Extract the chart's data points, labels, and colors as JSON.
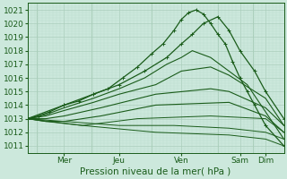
{
  "xlabel": "Pression niveau de la mer( hPa )",
  "bg_color": "#cce8dc",
  "grid_major_color": "#aacebb",
  "grid_minor_color": "#bcdece",
  "line_color": "#1a5c1a",
  "xlim": [
    0,
    7.0
  ],
  "ylim": [
    1010.5,
    1021.5
  ],
  "yticks": [
    1011,
    1012,
    1013,
    1014,
    1015,
    1016,
    1017,
    1018,
    1019,
    1020,
    1021
  ],
  "day_positions": [
    1.0,
    2.5,
    4.2,
    5.8,
    6.5
  ],
  "day_labels": [
    "Mer",
    "Jeu",
    "Ven",
    "Sam",
    "Dim"
  ],
  "day_vlines": [
    0.25,
    1.75,
    3.4,
    5.2,
    6.15
  ],
  "series": [
    {
      "x": [
        0.0,
        0.3,
        0.6,
        1.0,
        1.4,
        1.8,
        2.2,
        2.6,
        3.0,
        3.4,
        3.7,
        4.0,
        4.2,
        4.4,
        4.6,
        4.8,
        5.0,
        5.2,
        5.4,
        5.6,
        5.8,
        6.0,
        6.2,
        6.5,
        7.0
      ],
      "y": [
        1013.0,
        1013.2,
        1013.5,
        1014.0,
        1014.3,
        1014.8,
        1015.2,
        1016.0,
        1016.8,
        1017.8,
        1018.5,
        1019.5,
        1020.3,
        1020.8,
        1021.0,
        1020.7,
        1020.0,
        1019.2,
        1018.5,
        1017.2,
        1016.0,
        1015.0,
        1014.0,
        1012.5,
        1011.0
      ],
      "marker": true,
      "lw": 0.9
    },
    {
      "x": [
        0.0,
        1.0,
        1.8,
        2.5,
        3.2,
        3.8,
        4.2,
        4.5,
        4.8,
        5.2,
        5.5,
        5.8,
        6.2,
        6.5,
        7.0
      ],
      "y": [
        1013.0,
        1014.0,
        1014.8,
        1015.5,
        1016.5,
        1017.5,
        1018.5,
        1019.2,
        1020.0,
        1020.5,
        1019.5,
        1018.0,
        1016.5,
        1015.0,
        1013.0
      ],
      "marker": true,
      "lw": 0.9
    },
    {
      "x": [
        0.0,
        0.5,
        1.0,
        1.8,
        2.5,
        3.2,
        3.8,
        4.2,
        4.5,
        5.0,
        5.5,
        6.0,
        6.5,
        7.0
      ],
      "y": [
        1013.0,
        1013.3,
        1013.8,
        1014.5,
        1015.2,
        1016.0,
        1017.0,
        1017.5,
        1018.0,
        1017.5,
        1016.5,
        1015.5,
        1013.5,
        1011.5
      ],
      "marker": false,
      "lw": 0.8
    },
    {
      "x": [
        0.0,
        0.5,
        1.0,
        1.8,
        2.5,
        3.5,
        4.2,
        5.0,
        5.5,
        6.5,
        7.0
      ],
      "y": [
        1013.0,
        1013.2,
        1013.6,
        1014.2,
        1014.8,
        1015.5,
        1016.5,
        1016.8,
        1016.2,
        1014.5,
        1012.5
      ],
      "marker": false,
      "lw": 0.8
    },
    {
      "x": [
        0.0,
        0.5,
        1.0,
        2.0,
        3.5,
        5.0,
        5.5,
        6.5,
        7.0
      ],
      "y": [
        1013.0,
        1013.0,
        1013.2,
        1013.8,
        1014.8,
        1015.2,
        1015.0,
        1013.8,
        1012.5
      ],
      "marker": false,
      "lw": 0.8
    },
    {
      "x": [
        0.0,
        0.5,
        1.0,
        2.0,
        3.5,
        5.5,
        6.5,
        7.0
      ],
      "y": [
        1013.0,
        1012.8,
        1012.8,
        1013.2,
        1014.0,
        1014.2,
        1013.2,
        1012.0
      ],
      "marker": false,
      "lw": 0.8
    },
    {
      "x": [
        0.0,
        0.5,
        1.5,
        3.0,
        5.0,
        6.5,
        7.0
      ],
      "y": [
        1013.0,
        1012.8,
        1012.5,
        1013.0,
        1013.2,
        1013.0,
        1012.0
      ],
      "marker": false,
      "lw": 0.7
    },
    {
      "x": [
        0.0,
        1.0,
        2.5,
        4.0,
        5.5,
        6.5,
        7.0
      ],
      "y": [
        1013.0,
        1012.8,
        1012.5,
        1012.5,
        1012.3,
        1012.0,
        1011.5
      ],
      "marker": false,
      "lw": 0.7
    },
    {
      "x": [
        0.0,
        1.5,
        3.5,
        5.5,
        6.5,
        7.0
      ],
      "y": [
        1013.0,
        1012.5,
        1012.0,
        1011.8,
        1011.5,
        1011.0
      ],
      "marker": false,
      "lw": 0.7
    }
  ]
}
